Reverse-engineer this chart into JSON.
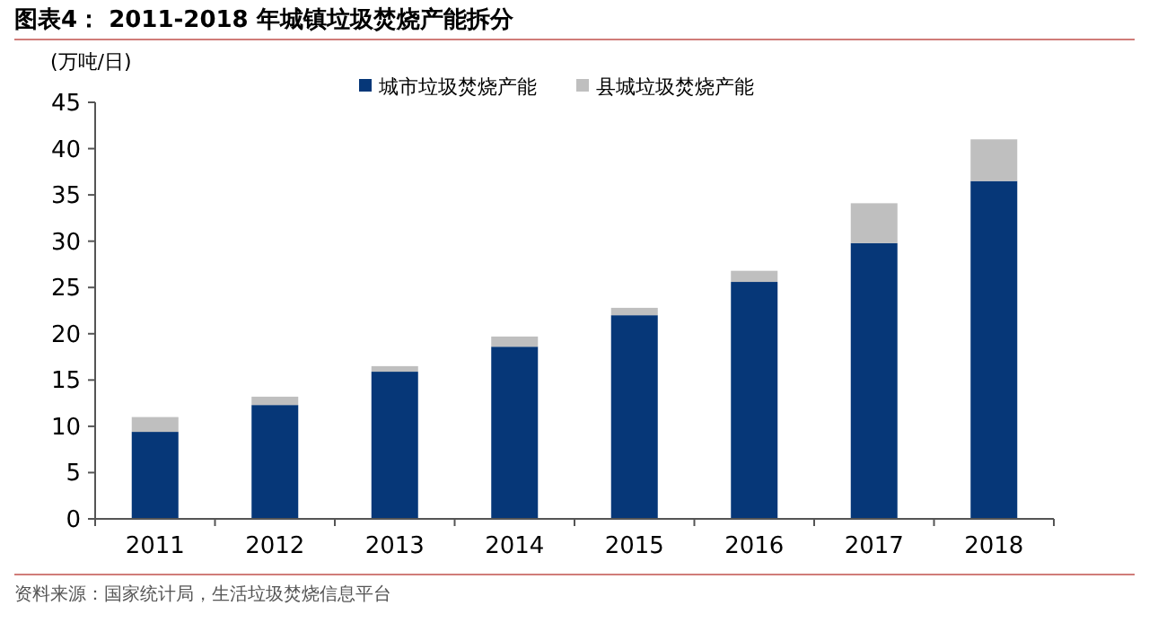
{
  "chart_data": {
    "type": "bar",
    "title": "图表4：  2011-2018 年城镇垃圾焚烧产能拆分",
    "ylabel": "(万吨/日)",
    "categories": [
      "2011",
      "2012",
      "2013",
      "2014",
      "2015",
      "2016",
      "2017",
      "2018"
    ],
    "series": [
      {
        "name": "城市垃圾焚烧产能",
        "color": "#063778",
        "values": [
          9.4,
          12.3,
          15.9,
          18.6,
          22.0,
          25.6,
          29.8,
          36.5
        ]
      },
      {
        "name": "县城垃圾焚烧产能",
        "color": "#bfbfbf",
        "values": [
          1.6,
          0.9,
          0.6,
          1.1,
          0.8,
          1.2,
          4.3,
          4.5
        ]
      }
    ],
    "stacked": true,
    "ylim": [
      0,
      45
    ],
    "yticks": [
      0,
      5,
      10,
      15,
      20,
      25,
      30,
      35,
      40,
      45
    ],
    "grid": false,
    "legend": "top",
    "annotations": [
      "资料来源：国家统计局，生活垃圾焚烧信息平台"
    ]
  }
}
